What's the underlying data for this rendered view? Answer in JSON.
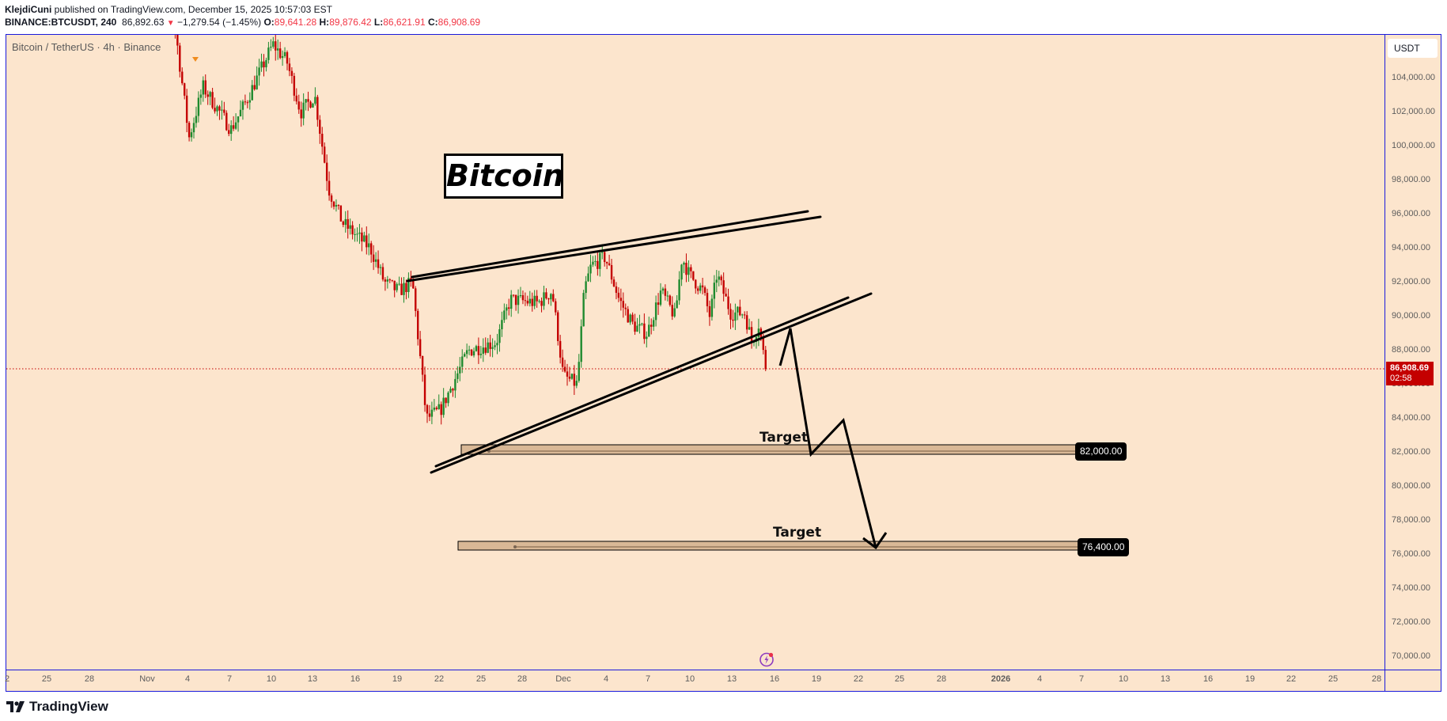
{
  "header": {
    "author": "KlejdiCuni",
    "published_text": " published on TradingView.com, December 15, 2025 10:57:03 EST",
    "symbol": "BINANCE:BTCUSDT, 240",
    "last": "86,892.63",
    "change_arrow": "▼",
    "change": "−1,279.54 (−1.45%)",
    "o_label": "O:",
    "o": "89,641.28",
    "h_label": "H:",
    "h": "89,876.42",
    "l_label": "L:",
    "l": "86,621.91",
    "c_label": "C:",
    "c": "86,908.69"
  },
  "chart": {
    "title": "Bitcoin / TetherUS · 4h · Binance",
    "currency": "USDT",
    "last_price": "86,908.69",
    "countdown": "02:58",
    "annotation_title": "Bitcoin",
    "targets": [
      {
        "text": "Target",
        "price_label": "82,000.00"
      },
      {
        "text": "Target",
        "price_label": "76,400.00"
      }
    ],
    "branding": "TradingView",
    "colors": {
      "background": "#fce5cd",
      "up": "#1e8a2e",
      "down": "#c40000",
      "border": "#1a1adb",
      "zone": "#d9b896",
      "last_price": "#c40000"
    }
  },
  "chart_data": {
    "type": "candlestick",
    "title": "Bitcoin / TetherUS · 4h · Binance",
    "xlabel": "",
    "ylabel": "USDT",
    "ylim": [
      69000,
      105500
    ],
    "price_ticks": [
      "104,000.00",
      "102,000.00",
      "100,000.00",
      "98,000.00",
      "96,000.00",
      "94,000.00",
      "92,000.00",
      "90,000.00",
      "88,000.00",
      "86,000.00",
      "84,000.00",
      "82,000.00",
      "80,000.00",
      "78,000.00",
      "76,000.00",
      "74,000.00",
      "72,000.00",
      "70,000.00"
    ],
    "time_ticks": [
      "2",
      "25",
      "28",
      "Nov",
      "4",
      "7",
      "10",
      "13",
      "16",
      "19",
      "22",
      "25",
      "28",
      "Dec",
      "4",
      "7",
      "10",
      "13",
      "16",
      "19",
      "22",
      "25",
      "28",
      "2026",
      "4",
      "7",
      "10",
      "13",
      "16",
      "19",
      "22",
      "25",
      "28"
    ],
    "price_path": [
      {
        "date": "Nov 1",
        "price": 110000
      },
      {
        "date": "Nov 3",
        "price": 107000
      },
      {
        "date": "Nov 4",
        "price": 100500
      },
      {
        "date": "Nov 5",
        "price": 103500
      },
      {
        "date": "Nov 7",
        "price": 101000
      },
      {
        "date": "Nov 8",
        "price": 102500
      },
      {
        "date": "Nov 10",
        "price": 106000
      },
      {
        "date": "Nov 11",
        "price": 105000
      },
      {
        "date": "Nov 12",
        "price": 102000
      },
      {
        "date": "Nov 13",
        "price": 103000
      },
      {
        "date": "Nov 14",
        "price": 97500
      },
      {
        "date": "Nov 15",
        "price": 95500
      },
      {
        "date": "Nov 17",
        "price": 94000
      },
      {
        "date": "Nov 18",
        "price": 92000
      },
      {
        "date": "Nov 19",
        "price": 91500
      },
      {
        "date": "Nov 20",
        "price": 92000
      },
      {
        "date": "Nov 21",
        "price": 84000
      },
      {
        "date": "Nov 22",
        "price": 84500
      },
      {
        "date": "Nov 24",
        "price": 88000
      },
      {
        "date": "Nov 26",
        "price": 88500
      },
      {
        "date": "Nov 27",
        "price": 91000
      },
      {
        "date": "Nov 29",
        "price": 90800
      },
      {
        "date": "Nov 30",
        "price": 91500
      },
      {
        "date": "Dec 1",
        "price": 86500
      },
      {
        "date": "Dec 2",
        "price": 86000
      },
      {
        "date": "Dec 2.5",
        "price": 91500
      },
      {
        "date": "Dec 3",
        "price": 93000
      },
      {
        "date": "Dec 4",
        "price": 93500
      },
      {
        "date": "Dec 5",
        "price": 91000
      },
      {
        "date": "Dec 6",
        "price": 89500
      },
      {
        "date": "Dec 7",
        "price": 89000
      },
      {
        "date": "Dec 8",
        "price": 91500
      },
      {
        "date": "Dec 9",
        "price": 90000
      },
      {
        "date": "Dec 9.5",
        "price": 93500
      },
      {
        "date": "Dec 10",
        "price": 92500
      },
      {
        "date": "Dec 11",
        "price": 91500
      },
      {
        "date": "Dec 11.5",
        "price": 90000
      },
      {
        "date": "Dec 12",
        "price": 92500
      },
      {
        "date": "Dec 13",
        "price": 90200
      },
      {
        "date": "Dec 14",
        "price": 90200
      },
      {
        "date": "Dec 14.5",
        "price": 88500
      },
      {
        "date": "Dec 15",
        "price": 89600
      },
      {
        "date": "Dec 15.5",
        "price": 86908.69
      }
    ],
    "annotations": {
      "rising_wedge_upper": [
        {
          "date": "Nov 20",
          "price": 92400
        },
        {
          "date": "Dec 18",
          "price": 96200
        }
      ],
      "rising_wedge_lower": [
        {
          "date": "Nov 21",
          "price": 80700
        },
        {
          "date": "Dec 20",
          "price": 91400
        }
      ],
      "targets": [
        82000,
        76400
      ],
      "projection_path": [
        {
          "date": "Dec 16",
          "price": 88100
        },
        {
          "date": "Dec 17",
          "price": 89200
        },
        {
          "date": "Dec 19",
          "price": 81800
        },
        {
          "date": "Dec 21",
          "price": 83800
        },
        {
          "date": "Dec 23",
          "price": 76300
        }
      ]
    }
  }
}
